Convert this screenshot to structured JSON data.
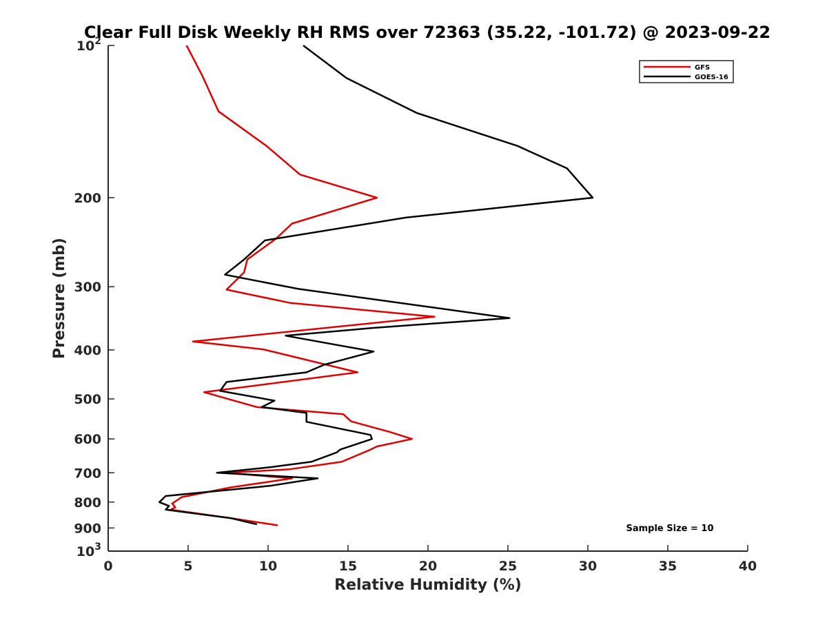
{
  "chart_data": {
    "type": "line",
    "title": "Clear Full Disk Weekly RH RMS over 72363 (35.22, -101.72) @ 2023-09-22",
    "xlabel": "Relative Humidity (%)",
    "ylabel": "Pressure (mb)",
    "xlim": [
      0,
      40
    ],
    "ylim": [
      100,
      1000
    ],
    "yscale": "log",
    "y_reversed": true,
    "x_ticks": [
      {
        "value": 0,
        "label": "0"
      },
      {
        "value": 5,
        "label": "5"
      },
      {
        "value": 10,
        "label": "10"
      },
      {
        "value": 15,
        "label": "15"
      },
      {
        "value": 20,
        "label": "20"
      },
      {
        "value": 25,
        "label": "25"
      },
      {
        "value": 30,
        "label": "30"
      },
      {
        "value": 35,
        "label": "35"
      },
      {
        "value": 40,
        "label": "40"
      }
    ],
    "y_ticks": [
      {
        "value": 100,
        "label": "10",
        "exp": "2"
      },
      {
        "value": 200,
        "label": "200"
      },
      {
        "value": 300,
        "label": "300"
      },
      {
        "value": 400,
        "label": "400"
      },
      {
        "value": 500,
        "label": "500"
      },
      {
        "value": 600,
        "label": "600"
      },
      {
        "value": 700,
        "label": "700"
      },
      {
        "value": 800,
        "label": "800"
      },
      {
        "value": 900,
        "label": "900"
      },
      {
        "value": 1000,
        "label": "10",
        "exp": "3"
      }
    ],
    "grid": false,
    "legend_position": "top-right",
    "series": [
      {
        "name": "GFS",
        "color": "#e00000",
        "points": [
          [
            4.9,
            100
          ],
          [
            5.9,
            115
          ],
          [
            6.9,
            135
          ],
          [
            9.9,
            158
          ],
          [
            12.0,
            180
          ],
          [
            16.8,
            200
          ],
          [
            11.5,
            225
          ],
          [
            10.5,
            241
          ],
          [
            8.7,
            265
          ],
          [
            8.5,
            281
          ],
          [
            7.4,
            304
          ],
          [
            11.4,
            323
          ],
          [
            20.4,
            344
          ],
          [
            5.3,
            385
          ],
          [
            9.7,
            399
          ],
          [
            15.6,
            443
          ],
          [
            6.0,
            485
          ],
          [
            9.3,
            519
          ],
          [
            14.7,
            536
          ],
          [
            15.2,
            554
          ],
          [
            17.6,
            581
          ],
          [
            19.0,
            600
          ],
          [
            16.8,
            621
          ],
          [
            16.3,
            632
          ],
          [
            14.6,
            666
          ],
          [
            11.3,
            689
          ],
          [
            7.4,
            700
          ],
          [
            11.5,
            718
          ],
          [
            7.7,
            748
          ],
          [
            4.6,
            782
          ],
          [
            4.0,
            805
          ],
          [
            4.2,
            819
          ],
          [
            3.9,
            828
          ],
          [
            7.7,
            861
          ],
          [
            10.6,
            889
          ]
        ]
      },
      {
        "name": "GOES-16",
        "color": "#000000",
        "points": [
          [
            12.2,
            100
          ],
          [
            14.9,
            116
          ],
          [
            19.3,
            136
          ],
          [
            25.6,
            158
          ],
          [
            28.7,
            175
          ],
          [
            30.3,
            200
          ],
          [
            18.6,
            219
          ],
          [
            9.8,
            243
          ],
          [
            8.5,
            265
          ],
          [
            7.3,
            284
          ],
          [
            11.9,
            303
          ],
          [
            20.4,
            330
          ],
          [
            25.1,
            346
          ],
          [
            16.5,
            362
          ],
          [
            11.1,
            375
          ],
          [
            16.6,
            403
          ],
          [
            13.5,
            428
          ],
          [
            12.4,
            443
          ],
          [
            7.4,
            463
          ],
          [
            7.0,
            482
          ],
          [
            10.4,
            504
          ],
          [
            9.6,
            519
          ],
          [
            12.4,
            533
          ],
          [
            12.4,
            555
          ],
          [
            16.4,
            589
          ],
          [
            16.5,
            600
          ],
          [
            14.5,
            630
          ],
          [
            14.3,
            638
          ],
          [
            12.7,
            666
          ],
          [
            10.2,
            682
          ],
          [
            6.8,
            700
          ],
          [
            13.1,
            718
          ],
          [
            10.1,
            743
          ],
          [
            3.6,
            778
          ],
          [
            3.2,
            800
          ],
          [
            3.8,
            814
          ],
          [
            3.6,
            828
          ],
          [
            7.7,
            861
          ],
          [
            9.3,
            885
          ]
        ]
      }
    ],
    "annotations": [
      {
        "text": "Sample Size = 10",
        "x": 35.0,
        "y": 880
      }
    ]
  }
}
